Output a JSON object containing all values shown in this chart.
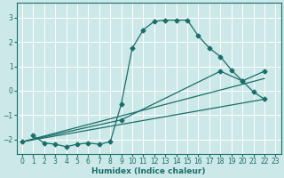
{
  "xlabel": "Humidex (Indice chaleur)",
  "bg_color": "#cce8e8",
  "grid_color": "#ffffff",
  "line_color": "#1a6e6a",
  "xlim": [
    -0.5,
    23.5
  ],
  "ylim": [
    -2.6,
    3.6
  ],
  "yticks": [
    -2,
    -1,
    0,
    1,
    2,
    3
  ],
  "xticks": [
    0,
    1,
    2,
    3,
    4,
    5,
    6,
    7,
    8,
    9,
    10,
    11,
    12,
    13,
    14,
    15,
    16,
    17,
    18,
    19,
    20,
    21,
    22,
    23
  ],
  "series_main_x": [
    1,
    2,
    3,
    4,
    5,
    6,
    7,
    8,
    9,
    10,
    11,
    12,
    13,
    14,
    15,
    16,
    17,
    18,
    19,
    20,
    21,
    22
  ],
  "series_main_y": [
    -1.85,
    -2.15,
    -2.2,
    -2.3,
    -2.2,
    -2.15,
    -2.2,
    -2.1,
    -0.55,
    1.75,
    2.5,
    2.85,
    2.9,
    2.9,
    2.9,
    2.25,
    1.75,
    1.4,
    0.85,
    0.4,
    -0.05,
    -0.35
  ],
  "series_line1_x": [
    0,
    22
  ],
  "series_line1_y": [
    -2.1,
    -0.35
  ],
  "series_line2_x": [
    0,
    22
  ],
  "series_line2_y": [
    -2.1,
    0.5
  ],
  "series_line3_x": [
    0,
    9,
    18,
    20,
    22
  ],
  "series_line3_y": [
    -2.1,
    -1.2,
    0.8,
    0.4,
    0.8
  ]
}
